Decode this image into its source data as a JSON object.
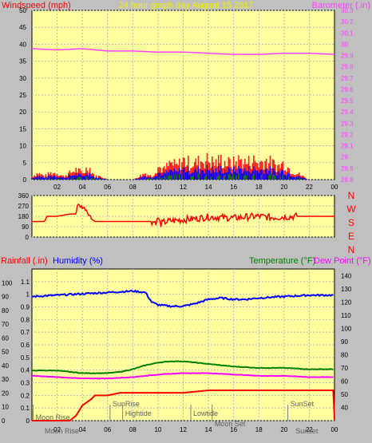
{
  "colors": {
    "background": "#c0c0c0",
    "plot_bg": "#ffffa0",
    "grid": "#b8b8b8",
    "wind_speed": "#ff0000",
    "wind_gust": "#ff2020",
    "wind_avg": "#0000ff",
    "wind_low": "#008000",
    "barometer": "#ff40ff",
    "wind_dir": "#ff0000",
    "rain": "#ff0000",
    "humidity": "#0000ff",
    "temperature": "#008000",
    "dew_point": "#ff00ff",
    "title": "#f0f000"
  },
  "chart_data": [
    {
      "id": "wind-baro",
      "type": "line",
      "title": "24 hour graph day   August 15 2017",
      "ylabel_left": "Windspeed (mph)",
      "ylabel_right": "Barometer (.in)",
      "x_ticks": [
        "02",
        "04",
        "06",
        "08",
        "10",
        "12",
        "14",
        "16",
        "18",
        "20",
        "22",
        "00"
      ],
      "left_ticks": [
        0,
        5,
        10,
        15,
        20,
        25,
        30,
        35,
        40,
        45,
        50
      ],
      "right_ticks": [
        "28.8",
        "28.9",
        "29",
        "29.1",
        "29.2",
        "29.3",
        "29.4",
        "29.5",
        "29.6",
        "29.7",
        "29.8",
        "29.9",
        "30",
        "30.1",
        "30.2",
        "30.3"
      ],
      "ylim_left": [
        0,
        50
      ],
      "ylim_right": [
        28.8,
        30.3
      ],
      "grid": true,
      "series": [
        {
          "name": "Barometer",
          "axis": "right",
          "x": [
            0,
            2,
            4,
            5,
            6,
            8,
            10,
            12,
            14,
            16,
            17,
            18,
            20,
            22,
            24
          ],
          "values": [
            29.96,
            29.95,
            29.96,
            29.95,
            29.94,
            29.94,
            29.93,
            29.93,
            29.92,
            29.91,
            29.91,
            29.91,
            29.92,
            29.92,
            29.91
          ]
        },
        {
          "name": "Windspeed",
          "axis": "left",
          "x": [
            0,
            0.5,
            1,
            1.5,
            2,
            2.5,
            3,
            3.5,
            4,
            4.5,
            5,
            5.5,
            6,
            7,
            8,
            8.5,
            9,
            9.5,
            10,
            10.5,
            11,
            11.5,
            12,
            12.5,
            13,
            13.5,
            14,
            14.5,
            15,
            15.5,
            16,
            16.5,
            17,
            17.5,
            18,
            18.5,
            19,
            19.5,
            20,
            20.5,
            21,
            21.5,
            22,
            23,
            24
          ],
          "values": [
            1,
            2,
            1,
            2,
            2,
            1,
            2,
            3,
            2,
            4,
            1,
            1,
            0,
            0,
            0,
            1,
            2,
            1,
            4,
            3,
            5,
            4,
            6,
            5,
            5,
            6,
            6,
            5,
            6,
            5,
            5,
            6,
            5,
            6,
            5,
            6,
            5,
            4,
            5,
            3,
            2,
            1,
            0,
            0,
            0
          ]
        }
      ]
    },
    {
      "id": "wind-dir",
      "type": "line",
      "left_ticks": [
        0,
        90,
        180,
        270,
        360
      ],
      "right_labels": [
        "N",
        "W",
        "S",
        "E",
        "N"
      ],
      "ylim": [
        0,
        360
      ],
      "grid": true,
      "series": [
        {
          "name": "Wind direction",
          "x": [
            0,
            1,
            1.2,
            2,
            3,
            3.5,
            3.6,
            4,
            4.3,
            4.5,
            4.8,
            5,
            6,
            8,
            9,
            9.5,
            9.9,
            10,
            10.2,
            10.5,
            11,
            12,
            13,
            14,
            15,
            16,
            17,
            18,
            19,
            20,
            21,
            22,
            23,
            24
          ],
          "values": [
            135,
            135,
            180,
            180,
            200,
            200,
            280,
            260,
            240,
            200,
            150,
            135,
            135,
            135,
            135,
            135,
            130,
            170,
            110,
            130,
            140,
            150,
            160,
            175,
            170,
            165,
            175,
            180,
            170,
            175,
            180,
            180,
            180,
            180
          ]
        }
      ]
    },
    {
      "id": "rain-hum-temp",
      "type": "line",
      "ylabel_left_1": "Rainfall (.in)",
      "ylabel_left_2": "Humidity (%)",
      "ylabel_right_1": "Temperature (°F)",
      "ylabel_right_2": "Dew Point (°F)",
      "rain_ticks": [
        "0",
        "0.1",
        "0.2",
        "0.3",
        "0.4",
        "0.5",
        "0.6",
        "0.7",
        "0.8",
        "0.9",
        "1",
        "1.1"
      ],
      "humidity_ticks": [
        0,
        10,
        20,
        30,
        40,
        50,
        60,
        70,
        80,
        90,
        100
      ],
      "temp_ticks": [
        40,
        50,
        60,
        70,
        80,
        90,
        100,
        110,
        120,
        130,
        140
      ],
      "x_ticks": [
        "00",
        "02",
        "04",
        "06",
        "08",
        "10",
        "12",
        "14",
        "16",
        "18",
        "20",
        "22",
        "00"
      ],
      "rain_lim": [
        0,
        1.2
      ],
      "temp_lim": [
        30,
        145
      ],
      "grid": true,
      "series": [
        {
          "name": "Humidity",
          "x": [
            0,
            2,
            4,
            6,
            8,
            9,
            9.5,
            10,
            11,
            12,
            13,
            14,
            15,
            16,
            17,
            18,
            20,
            22,
            24
          ],
          "values": [
            90,
            91,
            92,
            93,
            94,
            93,
            86,
            84,
            83,
            83,
            85,
            88,
            89,
            88,
            88,
            89,
            90,
            91,
            91
          ]
        },
        {
          "name": "Temperature",
          "x": [
            0,
            2,
            4,
            6,
            7,
            8,
            9,
            10,
            11,
            12,
            13,
            14,
            16,
            18,
            20,
            22,
            24
          ],
          "values": [
            68,
            68,
            66,
            66,
            67,
            69,
            72,
            74,
            75,
            75,
            74,
            73,
            71,
            70,
            70,
            69,
            69
          ]
        },
        {
          "name": "Dew Point",
          "x": [
            0,
            2,
            4,
            6,
            8,
            10,
            12,
            14,
            16,
            18,
            20,
            22,
            24
          ],
          "values": [
            64,
            63,
            62,
            62,
            63,
            65,
            66,
            66,
            65,
            64,
            64,
            63,
            63
          ]
        },
        {
          "name": "Rainfall",
          "x": [
            0,
            3,
            3.5,
            4,
            4.7,
            5,
            6,
            7,
            9,
            12,
            14,
            16,
            20,
            23.9,
            24
          ],
          "values": [
            0,
            0,
            0.04,
            0.12,
            0.17,
            0.2,
            0.2,
            0.22,
            0.22,
            0.22,
            0.24,
            0.24,
            0.24,
            0.24,
            0.01
          ]
        }
      ]
    }
  ],
  "events": {
    "top": [
      {
        "label": "Moon Rise",
        "x": 0.1
      },
      {
        "label": "SunRise",
        "x": 6.2
      },
      {
        "label": "Hightide",
        "x": 7.2
      },
      {
        "label": "Lowtide",
        "x": 12.6
      },
      {
        "label": "Moon Set",
        "x": 14.3
      },
      {
        "label": "SunSet",
        "x": 20.3
      }
    ],
    "bottom": [
      {
        "label": "Moon Rise",
        "x": 0.7
      },
      {
        "label": "Sunset",
        "x": 20.6
      }
    ]
  }
}
